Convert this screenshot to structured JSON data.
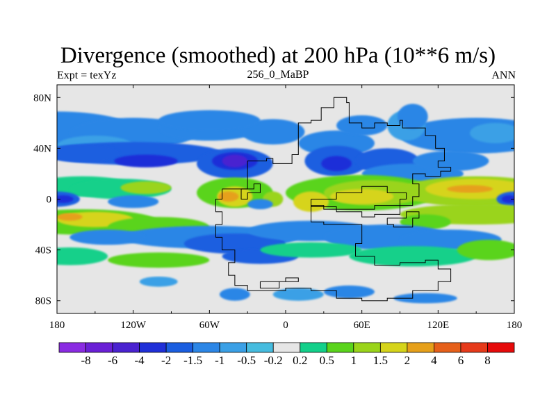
{
  "title": "Divergence (smoothed) at 200 hPa (10**6 m/s)",
  "left_string": "Expt = texYz",
  "center_string": "256_0_MaBP",
  "right_string": "ANN",
  "map": {
    "projection": "cylindrical-equidistant",
    "lon_range": [
      -180,
      180
    ],
    "lat_range": [
      -90,
      90
    ],
    "lon_ticks": [
      {
        "value": -180,
        "label": "180"
      },
      {
        "value": -120,
        "label": "120W"
      },
      {
        "value": -60,
        "label": "60W"
      },
      {
        "value": 0,
        "label": "0"
      },
      {
        "value": 60,
        "label": "60E"
      },
      {
        "value": 120,
        "label": "120E"
      },
      {
        "value": 180,
        "label": "180"
      }
    ],
    "lat_ticks": [
      {
        "value": 80,
        "label": "80N"
      },
      {
        "value": 40,
        "label": "40N"
      },
      {
        "value": 0,
        "label": "0"
      },
      {
        "value": -40,
        "label": "40S"
      },
      {
        "value": -80,
        "label": "80S"
      }
    ],
    "missing_color": "#e6e6e6"
  },
  "colorbar": {
    "labels": [
      "-8",
      "-6",
      "-4",
      "-2",
      "-1.5",
      "-1",
      "-0.5",
      "-0.2",
      "0.2",
      "0.5",
      "1",
      "1.5",
      "2",
      "4",
      "6",
      "8"
    ],
    "colors": [
      "#8a2be2",
      "#6a1fd6",
      "#4a22d0",
      "#1f2fd8",
      "#1a5ee0",
      "#2c86e6",
      "#3aa0e6",
      "#46bcdf",
      "#e6e6e6",
      "#13d08a",
      "#5ad41c",
      "#9ad41a",
      "#d6d41a",
      "#e6a01a",
      "#e6601a",
      "#e63a1a",
      "#e60a0a"
    ]
  }
}
